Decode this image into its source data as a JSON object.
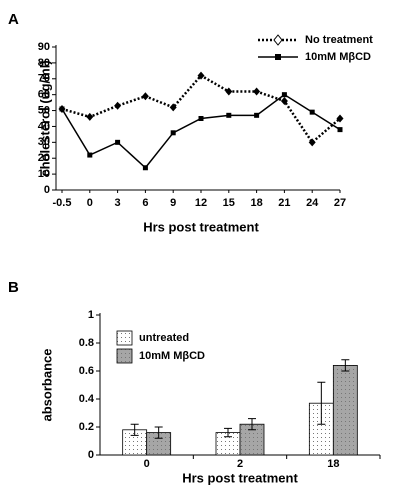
{
  "chart_data": [
    {
      "type": "line",
      "panel_label": "A",
      "x_label": "Hrs post treatment",
      "y_label": "cholesterol (ug/ml)",
      "categories": [
        "-0.5",
        "0",
        "3",
        "6",
        "9",
        "12",
        "15",
        "18",
        "21",
        "24",
        "27"
      ],
      "series": [
        {
          "name": "No treatment",
          "color": "#000000",
          "style": "dotted",
          "marker": "diamond",
          "values": [
            51,
            46,
            53,
            59,
            52,
            72,
            62,
            62,
            56,
            30,
            45
          ]
        },
        {
          "name": "10mM MβCD",
          "color": "#000000",
          "style": "solid",
          "marker": "square",
          "values": [
            51,
            22,
            30,
            14,
            36,
            45,
            47,
            47,
            60,
            49,
            38
          ]
        }
      ],
      "ylim": [
        0,
        90
      ],
      "yticks": [
        0,
        10,
        20,
        30,
        40,
        50,
        60,
        70,
        80,
        90
      ],
      "grid": false,
      "legend": "top-right"
    },
    {
      "type": "bar",
      "panel_label": "B",
      "x_label": "Hrs post treatment",
      "y_label": "absorbance",
      "categories": [
        "0",
        "2",
        "18"
      ],
      "series": [
        {
          "name": "untreated",
          "color": "#ffffff",
          "values": [
            0.18,
            0.16,
            0.37
          ],
          "errors": [
            0.04,
            0.03,
            0.15
          ]
        },
        {
          "name": "10mM MβCD",
          "color": "#a6a6a6",
          "values": [
            0.16,
            0.22,
            0.64
          ],
          "errors": [
            0.04,
            0.04,
            0.04
          ]
        }
      ],
      "ylim": [
        0,
        1
      ],
      "yticks": [
        0,
        0.2,
        0.4,
        0.6,
        0.8,
        1
      ],
      "grid": false,
      "legend": "top-left"
    }
  ]
}
